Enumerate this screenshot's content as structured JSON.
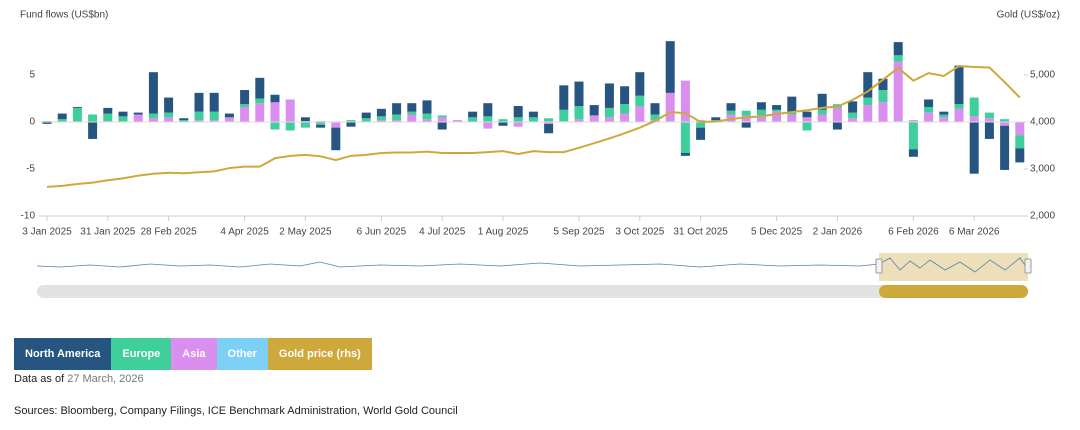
{
  "chart_data": {
    "type": "bar",
    "stacked": true,
    "y_axis_title": "Fund flows (US$bn)",
    "y2_axis_title": "Gold (US$/oz)",
    "categories": [
      "3 Jan 2025",
      null,
      null,
      null,
      "31 Jan 2025",
      null,
      null,
      null,
      "28 Feb 2025",
      null,
      null,
      null,
      null,
      "4 Apr 2025",
      null,
      null,
      null,
      "2 May 2025",
      null,
      null,
      null,
      null,
      "6 Jun 2025",
      null,
      null,
      null,
      "4 Jul 2025",
      null,
      null,
      null,
      "1 Aug 2025",
      null,
      null,
      null,
      null,
      "5 Sep 2025",
      null,
      null,
      null,
      "3 Oct 2025",
      null,
      null,
      null,
      "31 Oct 2025",
      null,
      null,
      null,
      null,
      "5 Dec 2025",
      null,
      null,
      null,
      "2 Jan 2026",
      null,
      null,
      null,
      null,
      "6 Feb 2026",
      null,
      null,
      null,
      "6 Mar 2026",
      null,
      null,
      null
    ],
    "series": [
      {
        "name": "North America",
        "color": "#265582",
        "values": [
          -0.2,
          0.6,
          0.1,
          -1.8,
          0.6,
          0.5,
          0.2,
          4.4,
          1.6,
          0.2,
          2.0,
          2.0,
          0.4,
          1.5,
          2.2,
          0.8,
          0,
          0.4,
          -0.3,
          -2.4,
          -0.5,
          0.6,
          0.8,
          1.2,
          0.9,
          1.4,
          -0.8,
          0,
          0.6,
          1.4,
          -0.4,
          1.2,
          0.6,
          -1.0,
          2.6,
          2.6,
          1.1,
          2.6,
          1.9,
          2.5,
          1.2,
          5.5,
          -0.3,
          -1.3,
          0.3,
          0.8,
          -0.6,
          0.8,
          0.5,
          1.6,
          0.6,
          1.7,
          -0.8,
          1.2,
          2.7,
          1.2,
          1.4,
          -0.8,
          0.8,
          0.3,
          4.1,
          -5.5,
          -1.8,
          -4.7,
          -1.5
        ]
      },
      {
        "name": "Europe",
        "color": "#3ecf9a",
        "values": [
          0.1,
          0.3,
          1.5,
          0.8,
          0.8,
          0.6,
          0,
          0.5,
          0.5,
          0.2,
          0.9,
          0.9,
          0,
          0.3,
          0.5,
          -0.8,
          -0.9,
          -0.6,
          -0.3,
          0,
          0.2,
          0.4,
          0.4,
          0.6,
          0.3,
          0.6,
          0.2,
          0,
          0.5,
          0.6,
          0.3,
          0.5,
          0.5,
          0.4,
          1.2,
          1.4,
          0,
          1.0,
          1.0,
          1.1,
          0.6,
          0,
          -3.3,
          -0.6,
          0.2,
          0.4,
          0.5,
          0.6,
          0.2,
          0.3,
          -0.9,
          0.5,
          0.4,
          0.6,
          0.8,
          1.3,
          0.7,
          -2.9,
          0.6,
          0.3,
          0.5,
          2.0,
          0.6,
          0.3,
          -1.4
        ]
      },
      {
        "name": "Asia",
        "color": "#d98ef0",
        "values": [
          0,
          0,
          0,
          0,
          0.1,
          0,
          0.8,
          0.4,
          0.5,
          0,
          0.2,
          0.2,
          0.5,
          1.6,
          2.0,
          2.1,
          2.4,
          0.1,
          0.1,
          -0.6,
          0,
          0,
          0.2,
          0.2,
          0.8,
          0.3,
          0.5,
          0.2,
          0,
          -0.7,
          0,
          -0.5,
          0,
          -0.2,
          0,
          0.3,
          0.7,
          0.5,
          0.9,
          1.7,
          0.2,
          3.0,
          4.4,
          0.2,
          0,
          0.8,
          0.7,
          0.7,
          1.1,
          0.8,
          0.5,
          0.8,
          1.5,
          0.4,
          1.8,
          2.1,
          6.3,
          0.2,
          1.0,
          0.5,
          1.4,
          0.6,
          0.4,
          -0.4,
          -1.4
        ]
      },
      {
        "name": "Other",
        "color": "#7dd0f5",
        "values": [
          0,
          0,
          0,
          0,
          0,
          0,
          0,
          0,
          0,
          0,
          0,
          0,
          0,
          0,
          0,
          0,
          0,
          0,
          0,
          0,
          0,
          0,
          0,
          0,
          0,
          0,
          0,
          0,
          0,
          0,
          0,
          0,
          0,
          0,
          0.1,
          0,
          0,
          0,
          0,
          0,
          0,
          0.1,
          0,
          0,
          0,
          0,
          0,
          0,
          0,
          0,
          0,
          0,
          0,
          0,
          0,
          0,
          0.1,
          0,
          0,
          0,
          0,
          0,
          0,
          0,
          0
        ]
      },
      {
        "name": "Gold price (rhs)",
        "color": "#cfa83b",
        "type": "line",
        "axis": "y2",
        "values": [
          2620,
          2640,
          2680,
          2710,
          2760,
          2800,
          2860,
          2900,
          2920,
          2910,
          2930,
          2950,
          3020,
          3050,
          3050,
          3230,
          3280,
          3300,
          3270,
          3190,
          3280,
          3300,
          3340,
          3350,
          3350,
          3370,
          3340,
          3340,
          3340,
          3360,
          3380,
          3320,
          3380,
          3360,
          3360,
          3450,
          3550,
          3650,
          3760,
          3880,
          4020,
          4210,
          4190,
          4000,
          4010,
          4060,
          4100,
          4120,
          4170,
          4210,
          4250,
          4300,
          4330,
          4470,
          4650,
          4900,
          5150,
          4880,
          5040,
          4980,
          5190,
          5170,
          5160,
          4850,
          4520
        ]
      }
    ],
    "ylim": [
      -10,
      10
    ],
    "yticks": [
      -10,
      -5,
      0,
      5
    ],
    "y2lim": [
      2000,
      6000
    ],
    "y2ticks": [
      {
        "value": 2000,
        "label": "2,000"
      },
      {
        "value": 3000,
        "label": "3,000"
      },
      {
        "value": 4000,
        "label": "4,000"
      },
      {
        "value": 5000,
        "label": "5,000"
      }
    ],
    "legend": "bottom-left"
  },
  "footer": {
    "data_as_of_label": "Data as of",
    "data_as_of": "27 March, 2026",
    "sources": "Sources: Bloomberg, Company Filings, ICE Benchmark Administration, World Gold Council"
  }
}
